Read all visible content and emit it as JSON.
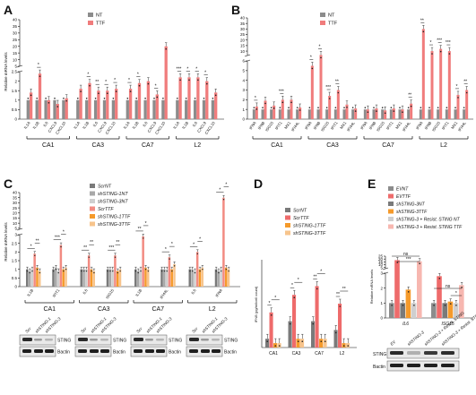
{
  "colors": {
    "nt": "#8c8c8c",
    "ttf": "#f07c7c",
    "dark_gray": "#7a7a7a",
    "mid_gray": "#a8a8a8",
    "light_gray": "#cfcfcf",
    "salmon": "#f28b82",
    "orange": "#f59a2b",
    "light_orange": "#f7c48c",
    "red": "#ee6b6b",
    "pink": "#f7b7b0"
  },
  "panels": [
    {
      "letter": "A",
      "ylabel": "Relative mRNA levels",
      "axis": {
        "break": true,
        "lower": [
          0,
          2.5
        ],
        "lower_ticks": [
          "0",
          "0.5",
          "1",
          "1.5",
          "2",
          "2.5"
        ],
        "upper": [
          5,
          40
        ],
        "upper_ticks": [
          "5",
          "10",
          "15",
          "20",
          "25",
          "30",
          "35",
          "40"
        ]
      },
      "legend": [
        {
          "label": "NT",
          "color": "#8c8c8c"
        },
        {
          "label": "TTF",
          "color": "#f07c7c"
        }
      ],
      "groups": [
        {
          "label": "CA1",
          "genes": [
            "IL1A",
            "IL1B",
            "IL6",
            "CXCL9",
            "CXCL10"
          ]
        },
        {
          "label": "CA3",
          "genes": [
            "IL1A",
            "IL1B",
            "IL6",
            "CXCL9",
            "CXCL10"
          ]
        },
        {
          "label": "CA7",
          "genes": [
            "IL1A",
            "IL1B",
            "IL6",
            "CXCL9",
            "CXCL10"
          ]
        },
        {
          "label": "L2",
          "genes": [
            "IL1A",
            "IL1B",
            "IL6",
            "CXCL9",
            "CXCL10"
          ]
        }
      ],
      "stars": [
        [
          "",
          "*",
          "",
          "",
          ""
        ],
        [
          "",
          "*",
          "**",
          "*",
          "*"
        ],
        [
          "*",
          "*",
          "",
          "*",
          ""
        ],
        [
          "***",
          "*",
          "*",
          "*",
          ""
        ]
      ]
    },
    {
      "letter": "B",
      "axis": {
        "break": true,
        "lower": [
          0,
          6
        ],
        "lower_ticks": [
          "0",
          "1",
          "2",
          "3",
          "4",
          "5",
          "6"
        ],
        "upper": [
          6,
          40
        ],
        "upper_ticks": [
          "10",
          "15",
          "20",
          "25",
          "30",
          "35",
          "40"
        ]
      },
      "legend": [
        {
          "label": "NT",
          "color": "#8c8c8c"
        },
        {
          "label": "TTF",
          "color": "#f07c7c"
        }
      ],
      "groups": [
        {
          "label": "CA1",
          "genes": [
            "IFNA",
            "IFNB",
            "ISG15",
            "IFIT1",
            "MX1",
            "IFI44L"
          ]
        },
        {
          "label": "CA3",
          "genes": [
            "IFNA",
            "IFNB",
            "ISG15",
            "IFIT1",
            "MX1",
            "IFI44L"
          ]
        },
        {
          "label": "CA7",
          "genes": [
            "IFNA",
            "IFNB",
            "ISG15",
            "IFIT1",
            "MX1",
            "IFI44L"
          ]
        },
        {
          "label": "L2",
          "genes": [
            "IFNA",
            "IFNB",
            "ISG15",
            "IFIT1",
            "MX1",
            "IFI44L"
          ]
        }
      ],
      "stars": [
        [
          "*",
          "",
          "",
          "***",
          "",
          ""
        ],
        [
          "*",
          "*",
          "***",
          "**",
          "",
          ""
        ],
        [
          "",
          "",
          "",
          "",
          "",
          "**"
        ],
        [
          "**",
          "*",
          "***",
          "***",
          "*",
          "**"
        ]
      ]
    },
    {
      "letter": "C",
      "ylabel": "Relative mRNA levels",
      "axis": {
        "break": true,
        "lower": [
          0,
          3
        ],
        "lower_ticks": [
          "0",
          "0.5",
          "1",
          "1.5",
          "2",
          "2.5",
          "3"
        ],
        "upper": [
          4,
          40
        ],
        "upper_ticks": [
          "5",
          "10",
          "15",
          "20",
          "25",
          "30",
          "35",
          "40"
        ]
      },
      "legend": [
        {
          "label": "ScrNT",
          "color": "#7a7a7a"
        },
        {
          "label": "shSTING-1NT",
          "color": "#a8a8a8"
        },
        {
          "label": "shSTING-3NT",
          "color": "#cfcfcf"
        },
        {
          "label": "ScrTTF",
          "color": "#f28b82"
        },
        {
          "label": "shSTING-1TTF",
          "color": "#f59a2b"
        },
        {
          "label": "shSTING-3TTF",
          "color": "#f7c48c"
        }
      ],
      "groups": [
        {
          "label": "CA1",
          "genes": [
            "IL1B",
            "IFIT1"
          ]
        },
        {
          "label": "CA3",
          "genes": [
            "IL6",
            "ISG15"
          ]
        },
        {
          "label": "CA7",
          "genes": [
            "IL1B",
            "IFI44L"
          ]
        },
        {
          "label": "L2",
          "genes": [
            "IL6",
            "IFNA"
          ]
        }
      ],
      "stars": [
        [
          "*",
          "***"
        ],
        [
          "**",
          "***"
        ],
        [
          "**",
          "*"
        ],
        [
          "*",
          "*"
        ]
      ],
      "stars2": [
        [
          "**",
          "*"
        ],
        [
          "**",
          "**"
        ],
        [
          "*",
          "*"
        ],
        [
          "*",
          "*"
        ]
      ],
      "blot_samples": [
        "Scr",
        "shSTING-1",
        "shSTING-3"
      ],
      "blot_rows": [
        "STING",
        "Bactin"
      ]
    },
    {
      "letter": "D",
      "ylabel": "IFNB (pg/ml/cell count)",
      "axis": {
        "break": false,
        "range": [
          0,
          1
        ],
        "ticks": []
      },
      "legend": [
        {
          "label": "ScrNT",
          "color": "#7a7a7a"
        },
        {
          "label": "ScrTTF",
          "color": "#ee6b6b"
        },
        {
          "label": "shSTING-1TTF",
          "color": "#f59a2b"
        },
        {
          "label": "shSTING-3TTF",
          "color": "#f7c48c"
        }
      ],
      "groups": [
        {
          "label": "CA1"
        },
        {
          "label": "CA3"
        },
        {
          "label": "CA7"
        },
        {
          "label": "L2"
        }
      ],
      "stars": [
        "*",
        "*",
        "**",
        "**"
      ],
      "stars2": [
        "*",
        "*",
        "*",
        "**"
      ]
    },
    {
      "letter": "E",
      "ylabel": "Relative mRNA levels",
      "axis": {
        "break": true,
        "lower": [
          0,
          3
        ],
        "lower_ticks": [
          "0",
          "1",
          "2",
          "3"
        ],
        "upper": [
          3,
          25
        ],
        "upper_ticks": [
          "5",
          "10",
          "15",
          "20",
          "25"
        ]
      },
      "legend": [
        {
          "label": "EVNT",
          "color": "#8c8c8c"
        },
        {
          "label": "EVTTF",
          "color": "#ee6b6b"
        },
        {
          "label": "shSTING-3NT",
          "color": "#7a7a7a"
        },
        {
          "label": "shSTING-3TTF",
          "color": "#f59a2b"
        },
        {
          "label": "shSTING-3 + Resist. STING NT",
          "color": "#cfcfcf"
        },
        {
          "label": "shSTING-3 + Resist. STING TTF",
          "color": "#f7b7b0"
        }
      ],
      "groups": [
        {
          "label": "IL6"
        },
        {
          "label": "ISG15"
        }
      ],
      "sig": [
        "ns",
        "***",
        "ns",
        "*"
      ],
      "blot_samples": [
        "EV",
        "shSTING-3",
        "shSTING-3 + Resist. STING",
        "shSTING-3 + Resist. STING"
      ],
      "blot_rows": [
        "STING",
        "Bactin"
      ]
    }
  ],
  "chart_data": [
    {
      "panel": "A",
      "type": "bar",
      "categories": [
        "CA1 IL1A",
        "CA1 IL1B",
        "CA1 IL6",
        "CA1 CXCL9",
        "CA1 CXCL10",
        "CA3 IL1A",
        "CA3 IL1B",
        "CA3 IL6",
        "CA3 CXCL9",
        "CA3 CXCL10",
        "CA7 IL1A",
        "CA7 IL1B",
        "CA7 IL6",
        "CA7 CXCL9",
        "CA7 CXCL10",
        "L2 IL1A",
        "L2 IL1B",
        "L2 IL6",
        "L2 CXCL9",
        "L2 CXCL10"
      ],
      "series": [
        {
          "name": "NT",
          "values": [
            1,
            1,
            1,
            1,
            1,
            1,
            1,
            1,
            1,
            1,
            1,
            1,
            1,
            1,
            1,
            1,
            1,
            1,
            1,
            1
          ]
        },
        {
          "name": "TTF",
          "values": [
            1.4,
            2.4,
            1.0,
            0.8,
            1.1,
            1.6,
            1.9,
            1.5,
            1.5,
            1.6,
            1.6,
            1.9,
            2.0,
            1.3,
            20,
            2.2,
            2.2,
            2.2,
            2.0,
            1.4
          ]
        }
      ],
      "ylabel": "Relative mRNA levels"
    },
    {
      "panel": "B",
      "type": "bar",
      "categories": [
        "CA1 IFNA",
        "CA1 IFNB",
        "CA1 ISG15",
        "CA1 IFIT1",
        "CA1 MX1",
        "CA1 IFI44L",
        "CA3 IFNA",
        "CA3 IFNB",
        "CA3 ISG15",
        "CA3 IFIT1",
        "CA3 MX1",
        "CA3 IFI44L",
        "CA7 IFNA",
        "CA7 IFNB",
        "CA7 ISG15",
        "CA7 IFIT1",
        "CA7 MX1",
        "CA7 IFI44L",
        "L2 IFNA",
        "L2 IFNB",
        "L2 ISG15",
        "L2 IFIT1",
        "L2 MX1",
        "L2 IFI44L"
      ],
      "series": [
        {
          "name": "NT",
          "values": [
            1,
            1,
            1,
            1,
            1,
            1,
            1,
            1,
            1,
            1,
            1,
            1,
            1,
            1,
            1,
            1,
            1,
            1,
            1,
            1,
            1,
            1,
            1,
            1
          ]
        },
        {
          "name": "TTF",
          "values": [
            1.3,
            1.9,
            1.4,
            2.0,
            2.0,
            1.2,
            5.5,
            6.5,
            2.4,
            3.0,
            1.5,
            1.1,
            1.0,
            1.1,
            0.9,
            1.1,
            1.0,
            1.6,
            30,
            10,
            12,
            10,
            2.5,
            3.0
          ]
        }
      ]
    },
    {
      "panel": "C",
      "type": "bar",
      "categories": [
        "CA1 IL1B",
        "CA1 IFIT1",
        "CA3 IL6",
        "CA3 ISG15",
        "CA7 IL1B",
        "CA7 IFI44L",
        "L2 IL6",
        "L2 IFNA"
      ],
      "series": [
        {
          "name": "ScrNT",
          "values": [
            1,
            1,
            1,
            1,
            1,
            1,
            1,
            1
          ]
        },
        {
          "name": "shSTING-1NT",
          "values": [
            0.9,
            1.1,
            1.0,
            1.0,
            0.9,
            1.0,
            1.0,
            0.9
          ]
        },
        {
          "name": "shSTING-3NT",
          "values": [
            1.0,
            0.9,
            1.0,
            1.0,
            1.0,
            1.0,
            0.9,
            1.0
          ]
        },
        {
          "name": "ScrTTF",
          "values": [
            1.9,
            2.4,
            1.8,
            1.8,
            2.9,
            1.7,
            2.0,
            35
          ]
        },
        {
          "name": "shSTING-1TTF",
          "values": [
            1.1,
            1.0,
            1.0,
            0.9,
            1.1,
            1.0,
            1.0,
            1.1
          ]
        },
        {
          "name": "shSTING-3TTF",
          "values": [
            0.9,
            1.1,
            0.9,
            1.0,
            1.0,
            1.3,
            1.1,
            1.0
          ]
        }
      ],
      "ylabel": "Relative mRNA levels"
    },
    {
      "panel": "D",
      "type": "bar",
      "categories": [
        "CA1",
        "CA3",
        "CA7",
        "L2"
      ],
      "series": [
        {
          "name": "ScrNT",
          "values": [
            0.1,
            0.3,
            0.3,
            0.2
          ]
        },
        {
          "name": "ScrTTF",
          "values": [
            0.4,
            0.6,
            0.7,
            0.5
          ]
        },
        {
          "name": "shSTING-1TTF",
          "values": [
            0.05,
            0.1,
            0.1,
            0.05
          ]
        },
        {
          "name": "shSTING-3TTF",
          "values": [
            0.05,
            0.1,
            0.1,
            0.05
          ]
        }
      ],
      "ylabel": "IFNB (pg/ml/cell count)"
    },
    {
      "panel": "E",
      "type": "bar",
      "categories": [
        "IL6",
        "ISG15"
      ],
      "series": [
        {
          "name": "EVNT",
          "values": [
            1.0,
            1.0
          ]
        },
        {
          "name": "EVTTF",
          "values": [
            18,
            2.8
          ]
        },
        {
          "name": "shSTING-3NT",
          "values": [
            1.0,
            1.0
          ]
        },
        {
          "name": "shSTING-3TTF",
          "values": [
            1.9,
            1.1
          ]
        },
        {
          "name": "shSTING-3 + Resist. STING NT",
          "values": [
            1.0,
            1.0
          ]
        },
        {
          "name": "shSTING-3 + Resist. STING TTF",
          "values": [
            16,
            2.2
          ]
        }
      ],
      "ylabel": "Relative mRNA levels"
    }
  ]
}
